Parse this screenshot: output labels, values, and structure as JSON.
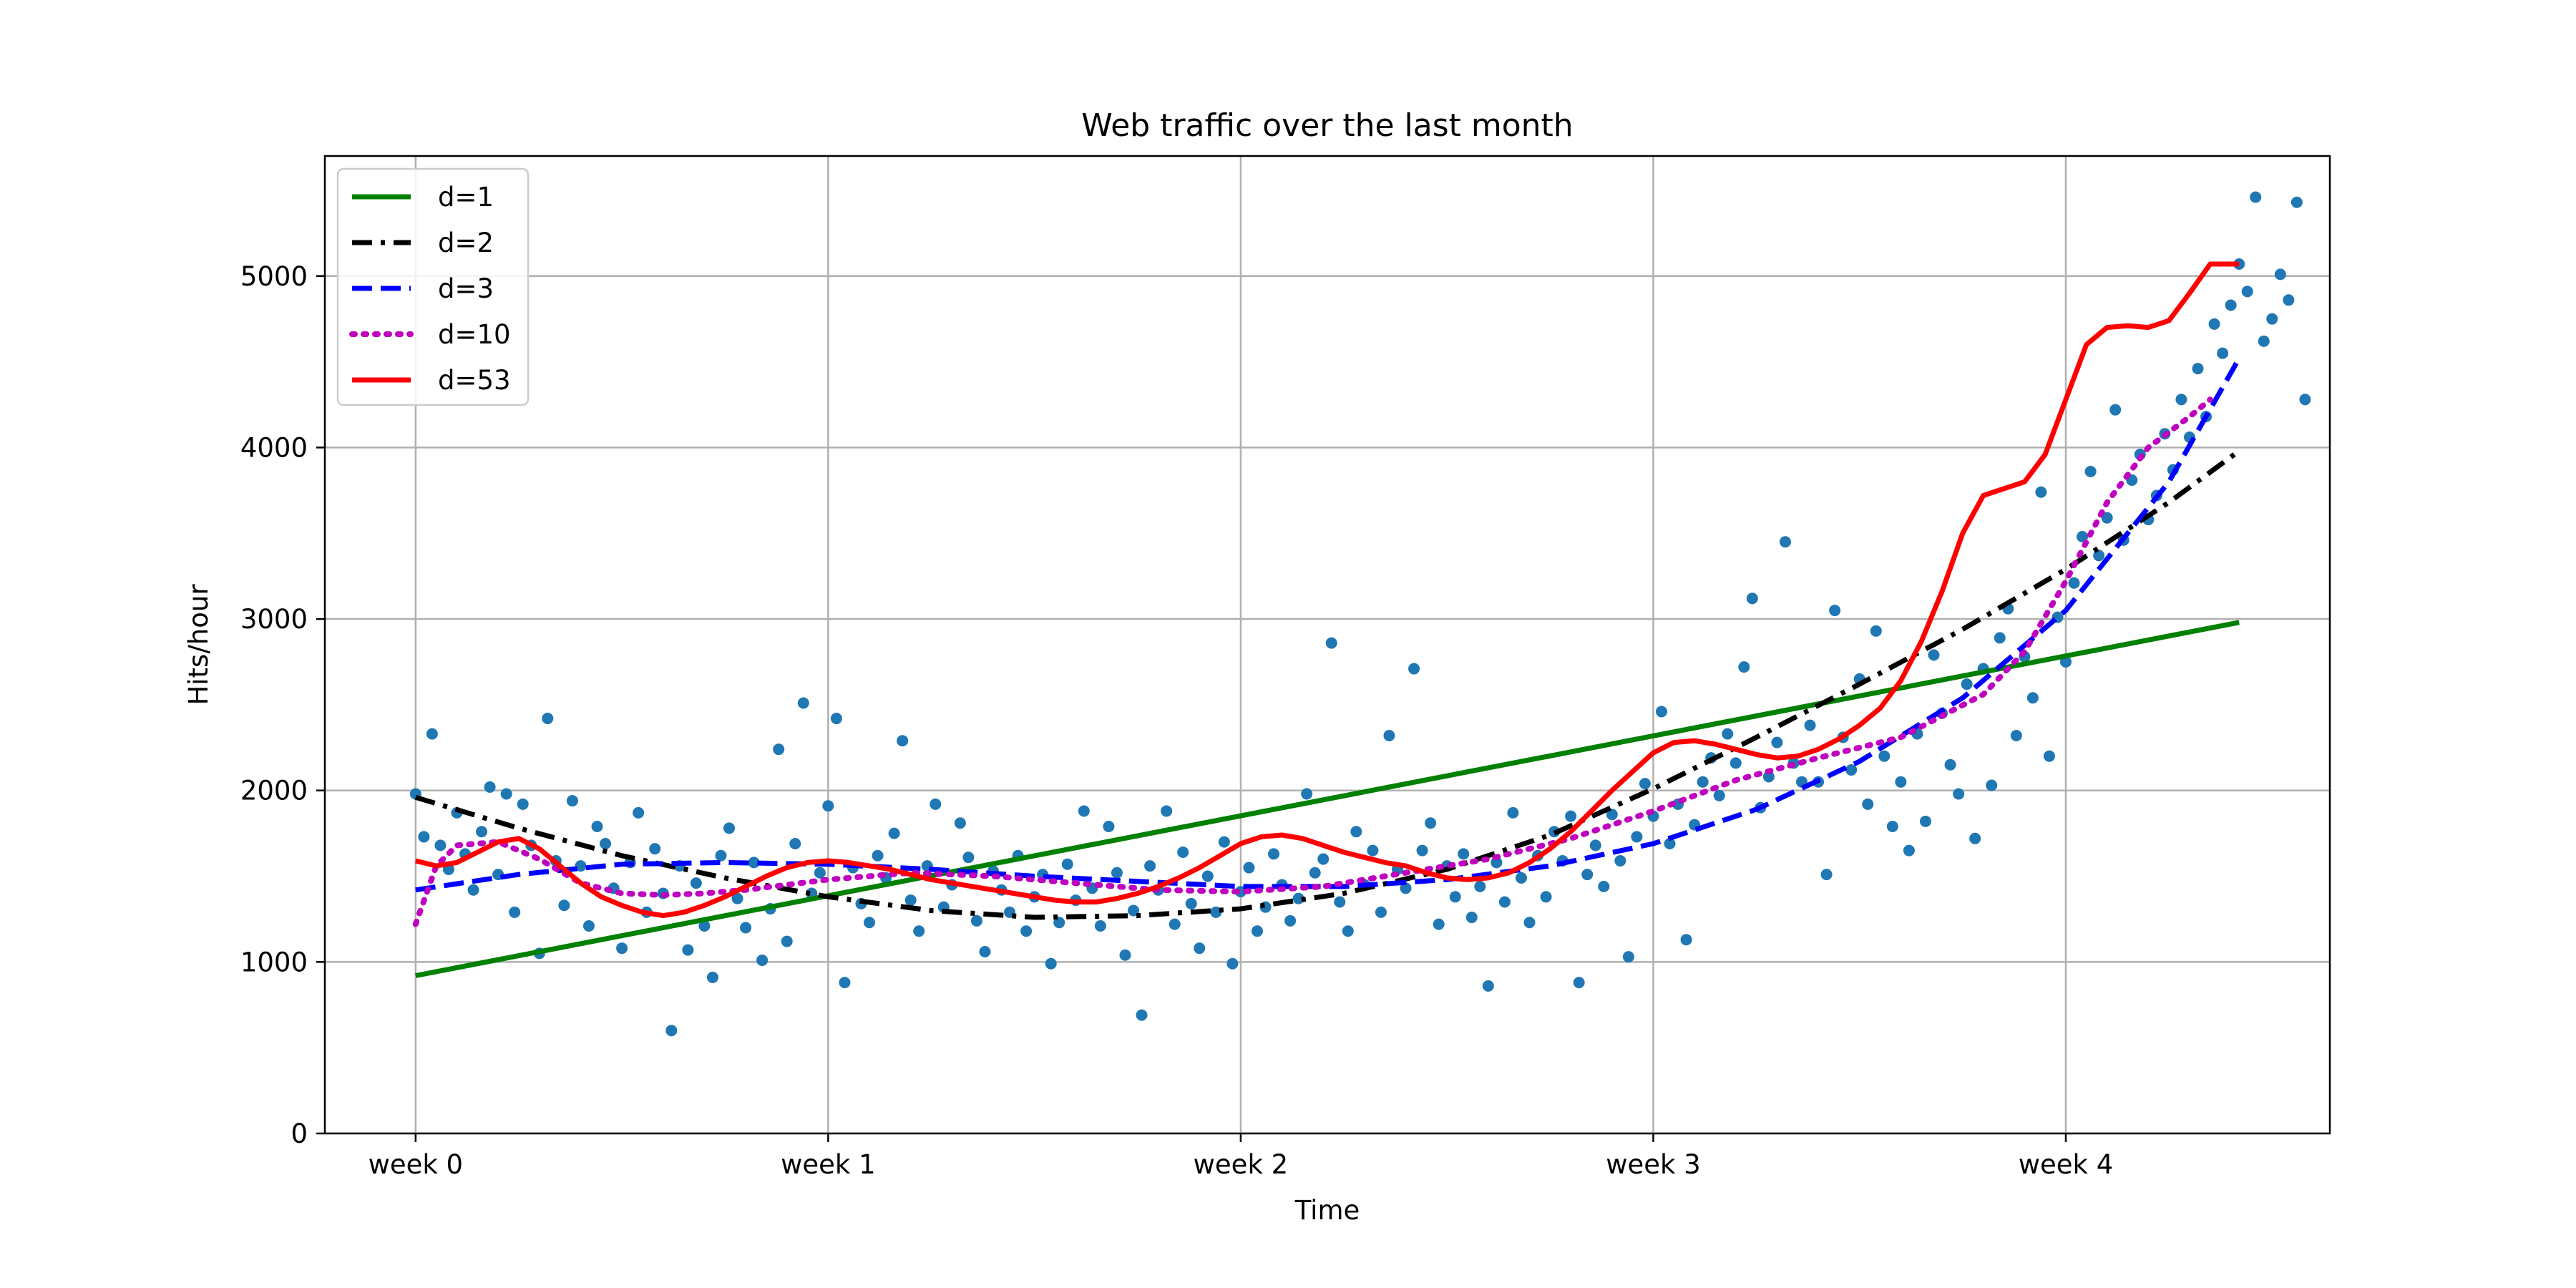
{
  "chart_data": {
    "type": "line",
    "title": "Web traffic over the last month",
    "xlabel": "Time",
    "ylabel": "Hits/hour",
    "xlim": [
      -0.22,
      4.64
    ],
    "ylim": [
      0,
      5700
    ],
    "x_unit": "weeks",
    "grid": true,
    "legend_position": "top-left",
    "x_ticks": [
      {
        "value": 0,
        "label": "week 0"
      },
      {
        "value": 1,
        "label": "week 1"
      },
      {
        "value": 2,
        "label": "week 2"
      },
      {
        "value": 3,
        "label": "week 3"
      },
      {
        "value": 4,
        "label": "week 4"
      }
    ],
    "y_ticks": [
      {
        "value": 0,
        "label": "0"
      },
      {
        "value": 1000,
        "label": "1000"
      },
      {
        "value": 2000,
        "label": "2000"
      },
      {
        "value": 3000,
        "label": "3000"
      },
      {
        "value": 4000,
        "label": "4000"
      },
      {
        "value": 5000,
        "label": "5000"
      }
    ],
    "scatter": {
      "color": "#1f77b4",
      "points": [
        [
          0.0,
          1980
        ],
        [
          0.02,
          1730
        ],
        [
          0.04,
          2330
        ],
        [
          0.06,
          1680
        ],
        [
          0.08,
          1540
        ],
        [
          0.1,
          1870
        ],
        [
          0.12,
          1630
        ],
        [
          0.14,
          1420
        ],
        [
          0.16,
          1760
        ],
        [
          0.18,
          2020
        ],
        [
          0.2,
          1510
        ],
        [
          0.22,
          1980
        ],
        [
          0.24,
          1290
        ],
        [
          0.26,
          1920
        ],
        [
          0.28,
          1680
        ],
        [
          0.3,
          1050
        ],
        [
          0.32,
          2420
        ],
        [
          0.34,
          1590
        ],
        [
          0.36,
          1330
        ],
        [
          0.38,
          1940
        ],
        [
          0.4,
          1560
        ],
        [
          0.42,
          1210
        ],
        [
          0.44,
          1790
        ],
        [
          0.46,
          1690
        ],
        [
          0.48,
          1430
        ],
        [
          0.5,
          1080
        ],
        [
          0.52,
          1580
        ],
        [
          0.54,
          1870
        ],
        [
          0.56,
          1290
        ],
        [
          0.58,
          1660
        ],
        [
          0.6,
          1400
        ],
        [
          0.62,
          600
        ],
        [
          0.64,
          1560
        ],
        [
          0.66,
          1070
        ],
        [
          0.68,
          1460
        ],
        [
          0.7,
          1210
        ],
        [
          0.72,
          910
        ],
        [
          0.74,
          1620
        ],
        [
          0.76,
          1780
        ],
        [
          0.78,
          1370
        ],
        [
          0.8,
          1200
        ],
        [
          0.82,
          1580
        ],
        [
          0.84,
          1010
        ],
        [
          0.86,
          1310
        ],
        [
          0.88,
          2240
        ],
        [
          0.9,
          1120
        ],
        [
          0.92,
          1690
        ],
        [
          0.94,
          2510
        ],
        [
          0.96,
          1400
        ],
        [
          0.98,
          1520
        ],
        [
          1.0,
          1910
        ],
        [
          1.02,
          2420
        ],
        [
          1.04,
          880
        ],
        [
          1.06,
          1550
        ],
        [
          1.08,
          1340
        ],
        [
          1.1,
          1230
        ],
        [
          1.12,
          1620
        ],
        [
          1.14,
          1490
        ],
        [
          1.16,
          1750
        ],
        [
          1.18,
          2290
        ],
        [
          1.2,
          1360
        ],
        [
          1.22,
          1180
        ],
        [
          1.24,
          1560
        ],
        [
          1.26,
          1920
        ],
        [
          1.28,
          1320
        ],
        [
          1.3,
          1450
        ],
        [
          1.32,
          1810
        ],
        [
          1.34,
          1610
        ],
        [
          1.36,
          1240
        ],
        [
          1.38,
          1060
        ],
        [
          1.4,
          1530
        ],
        [
          1.42,
          1420
        ],
        [
          1.44,
          1290
        ],
        [
          1.46,
          1620
        ],
        [
          1.48,
          1180
        ],
        [
          1.5,
          1380
        ],
        [
          1.52,
          1510
        ],
        [
          1.54,
          990
        ],
        [
          1.56,
          1230
        ],
        [
          1.58,
          1570
        ],
        [
          1.6,
          1360
        ],
        [
          1.62,
          1880
        ],
        [
          1.64,
          1430
        ],
        [
          1.66,
          1210
        ],
        [
          1.68,
          1790
        ],
        [
          1.7,
          1520
        ],
        [
          1.72,
          1040
        ],
        [
          1.74,
          1300
        ],
        [
          1.76,
          690
        ],
        [
          1.78,
          1560
        ],
        [
          1.8,
          1420
        ],
        [
          1.82,
          1880
        ],
        [
          1.84,
          1220
        ],
        [
          1.86,
          1640
        ],
        [
          1.88,
          1340
        ],
        [
          1.9,
          1080
        ],
        [
          1.92,
          1500
        ],
        [
          1.94,
          1290
        ],
        [
          1.96,
          1700
        ],
        [
          1.98,
          990
        ],
        [
          2.0,
          1410
        ],
        [
          2.02,
          1550
        ],
        [
          2.04,
          1180
        ],
        [
          2.06,
          1320
        ],
        [
          2.08,
          1630
        ],
        [
          2.1,
          1450
        ],
        [
          2.12,
          1240
        ],
        [
          2.14,
          1370
        ],
        [
          2.16,
          1980
        ],
        [
          2.18,
          1520
        ],
        [
          2.2,
          1600
        ],
        [
          2.22,
          2860
        ],
        [
          2.24,
          1350
        ],
        [
          2.26,
          1180
        ],
        [
          2.28,
          1760
        ],
        [
          2.3,
          1450
        ],
        [
          2.32,
          1650
        ],
        [
          2.34,
          1290
        ],
        [
          2.36,
          2320
        ],
        [
          2.38,
          1540
        ],
        [
          2.4,
          1430
        ],
        [
          2.42,
          2710
        ],
        [
          2.44,
          1650
        ],
        [
          2.46,
          1810
        ],
        [
          2.48,
          1220
        ],
        [
          2.5,
          1560
        ],
        [
          2.52,
          1380
        ],
        [
          2.54,
          1630
        ],
        [
          2.56,
          1260
        ],
        [
          2.58,
          1440
        ],
        [
          2.6,
          860
        ],
        [
          2.62,
          1580
        ],
        [
          2.64,
          1350
        ],
        [
          2.66,
          1870
        ],
        [
          2.68,
          1490
        ],
        [
          2.7,
          1230
        ],
        [
          2.72,
          1620
        ],
        [
          2.74,
          1380
        ],
        [
          2.76,
          1760
        ],
        [
          2.78,
          1590
        ],
        [
          2.8,
          1850
        ],
        [
          2.82,
          880
        ],
        [
          2.84,
          1510
        ],
        [
          2.86,
          1680
        ],
        [
          2.88,
          1440
        ],
        [
          2.9,
          1860
        ],
        [
          2.92,
          1590
        ],
        [
          2.94,
          1030
        ],
        [
          2.96,
          1730
        ],
        [
          2.98,
          2040
        ],
        [
          3.0,
          1850
        ],
        [
          3.02,
          2460
        ],
        [
          3.04,
          1690
        ],
        [
          3.06,
          1920
        ],
        [
          3.08,
          1130
        ],
        [
          3.1,
          1800
        ],
        [
          3.12,
          2050
        ],
        [
          3.14,
          2190
        ],
        [
          3.16,
          1970
        ],
        [
          3.18,
          2330
        ],
        [
          3.2,
          2160
        ],
        [
          3.22,
          2720
        ],
        [
          3.24,
          3120
        ],
        [
          3.26,
          1900
        ],
        [
          3.28,
          2080
        ],
        [
          3.3,
          2280
        ],
        [
          3.32,
          3450
        ],
        [
          3.34,
          2160
        ],
        [
          3.36,
          2050
        ],
        [
          3.38,
          2380
        ],
        [
          3.4,
          2050
        ],
        [
          3.42,
          1510
        ],
        [
          3.44,
          3050
        ],
        [
          3.46,
          2310
        ],
        [
          3.48,
          2120
        ],
        [
          3.5,
          2650
        ],
        [
          3.52,
          1920
        ],
        [
          3.54,
          2930
        ],
        [
          3.56,
          2200
        ],
        [
          3.58,
          1790
        ],
        [
          3.6,
          2050
        ],
        [
          3.62,
          1650
        ],
        [
          3.64,
          2330
        ],
        [
          3.66,
          1820
        ],
        [
          3.68,
          2790
        ],
        [
          3.7,
          2450
        ],
        [
          3.72,
          2150
        ],
        [
          3.74,
          1980
        ],
        [
          3.76,
          2620
        ],
        [
          3.78,
          1720
        ],
        [
          3.8,
          2710
        ],
        [
          3.82,
          2030
        ],
        [
          3.84,
          2890
        ],
        [
          3.86,
          3060
        ],
        [
          3.88,
          2320
        ],
        [
          3.9,
          2780
        ],
        [
          3.92,
          2540
        ],
        [
          3.94,
          3740
        ],
        [
          3.96,
          2200
        ],
        [
          3.98,
          3010
        ],
        [
          4.0,
          2750
        ],
        [
          4.02,
          3210
        ],
        [
          4.04,
          3480
        ],
        [
          4.06,
          3860
        ],
        [
          4.08,
          3370
        ],
        [
          4.1,
          3590
        ],
        [
          4.12,
          4220
        ],
        [
          4.14,
          3460
        ],
        [
          4.16,
          3810
        ],
        [
          4.18,
          3960
        ],
        [
          4.2,
          3580
        ],
        [
          4.22,
          3720
        ],
        [
          4.24,
          4080
        ],
        [
          4.26,
          3870
        ],
        [
          4.28,
          4280
        ],
        [
          4.3,
          4060
        ],
        [
          4.32,
          4460
        ],
        [
          4.34,
          4180
        ],
        [
          4.36,
          4720
        ],
        [
          4.38,
          4550
        ],
        [
          4.4,
          4830
        ],
        [
          4.42,
          5070
        ],
        [
          4.44,
          4910
        ],
        [
          4.46,
          5460
        ],
        [
          4.48,
          4620
        ],
        [
          4.5,
          4750
        ],
        [
          4.52,
          5010
        ],
        [
          4.54,
          4860
        ],
        [
          4.56,
          5430
        ],
        [
          4.58,
          4280
        ]
      ]
    },
    "series": [
      {
        "name": "d=1",
        "color": "#008000",
        "dash": "solid",
        "width": 7,
        "x": [
          0,
          4.42
        ],
        "y": [
          920,
          2980
        ]
      },
      {
        "name": "d=2",
        "color": "#000000",
        "dash": "dashdot",
        "width": 7,
        "x": [
          0,
          0.25,
          0.5,
          0.75,
          1.0,
          1.25,
          1.5,
          1.75,
          2.0,
          2.25,
          2.5,
          2.75,
          3.0,
          3.25,
          3.5,
          3.75,
          4.0,
          4.25,
          4.42
        ],
        "y": [
          1960,
          1780,
          1620,
          1490,
          1380,
          1300,
          1260,
          1270,
          1310,
          1400,
          1540,
          1740,
          2010,
          2310,
          2620,
          2940,
          3290,
          3680,
          3980
        ]
      },
      {
        "name": "d=3",
        "color": "#0000ff",
        "dash": "dashed",
        "width": 7,
        "x": [
          0,
          0.25,
          0.5,
          0.75,
          1.0,
          1.25,
          1.5,
          1.75,
          2.0,
          2.25,
          2.5,
          2.75,
          3.0,
          3.25,
          3.5,
          3.75,
          4.0,
          4.25,
          4.42
        ],
        "y": [
          1420,
          1510,
          1570,
          1580,
          1570,
          1540,
          1500,
          1470,
          1440,
          1440,
          1480,
          1560,
          1690,
          1890,
          2170,
          2540,
          3050,
          3800,
          4520
        ]
      },
      {
        "name": "d=10",
        "color": "#bf00bf",
        "dash": "dotted",
        "width": 8,
        "x": [
          0,
          0.05,
          0.1,
          0.2,
          0.3,
          0.4,
          0.5,
          0.6,
          0.7,
          0.8,
          1.0,
          1.2,
          1.4,
          1.6,
          1.8,
          2.0,
          2.2,
          2.4,
          2.6,
          2.8,
          3.0,
          3.2,
          3.4,
          3.6,
          3.8,
          3.9,
          4.0,
          4.1,
          4.2,
          4.3,
          4.35
        ],
        "y": [
          1220,
          1560,
          1680,
          1700,
          1600,
          1460,
          1400,
          1390,
          1400,
          1420,
          1480,
          1520,
          1500,
          1460,
          1420,
          1410,
          1440,
          1520,
          1600,
          1720,
          1880,
          2060,
          2190,
          2310,
          2560,
          2810,
          3220,
          3680,
          4000,
          4180,
          4280
        ]
      },
      {
        "name": "d=53",
        "color": "#ff0000",
        "dash": "solid",
        "width": 7,
        "x": [
          0,
          0.05,
          0.1,
          0.15,
          0.2,
          0.25,
          0.3,
          0.35,
          0.4,
          0.45,
          0.5,
          0.55,
          0.6,
          0.65,
          0.7,
          0.75,
          0.8,
          0.85,
          0.9,
          0.95,
          1.0,
          1.05,
          1.1,
          1.15,
          1.2,
          1.25,
          1.3,
          1.35,
          1.4,
          1.45,
          1.5,
          1.55,
          1.6,
          1.65,
          1.7,
          1.75,
          1.8,
          1.85,
          1.9,
          1.95,
          2.0,
          2.05,
          2.1,
          2.15,
          2.2,
          2.25,
          2.3,
          2.35,
          2.4,
          2.45,
          2.5,
          2.55,
          2.6,
          2.65,
          2.7,
          2.75,
          2.8,
          2.85,
          2.9,
          2.95,
          3.0,
          3.05,
          3.1,
          3.15,
          3.2,
          3.25,
          3.3,
          3.35,
          3.4,
          3.45,
          3.5,
          3.55,
          3.6,
          3.65,
          3.7,
          3.75,
          3.8,
          3.85,
          3.9,
          3.95,
          4.0,
          4.05,
          4.1,
          4.15,
          4.2,
          4.25,
          4.3,
          4.35,
          4.38,
          4.4,
          4.42
        ],
        "y": [
          1590,
          1560,
          1580,
          1640,
          1700,
          1720,
          1660,
          1560,
          1460,
          1380,
          1330,
          1290,
          1270,
          1290,
          1330,
          1380,
          1440,
          1500,
          1550,
          1580,
          1590,
          1580,
          1560,
          1540,
          1510,
          1480,
          1460,
          1440,
          1420,
          1400,
          1380,
          1360,
          1350,
          1350,
          1370,
          1400,
          1440,
          1490,
          1550,
          1620,
          1690,
          1730,
          1740,
          1720,
          1680,
          1640,
          1610,
          1580,
          1560,
          1520,
          1490,
          1480,
          1490,
          1520,
          1580,
          1660,
          1760,
          1880,
          2000,
          2110,
          2220,
          2280,
          2290,
          2270,
          2240,
          2210,
          2190,
          2200,
          2240,
          2300,
          2380,
          2480,
          2640,
          2870,
          3160,
          3500,
          3720,
          3760,
          3800,
          3960,
          4280,
          4600,
          4700,
          4710,
          4700,
          4740,
          4900,
          5070,
          5070,
          5070,
          5070
        ]
      }
    ]
  }
}
